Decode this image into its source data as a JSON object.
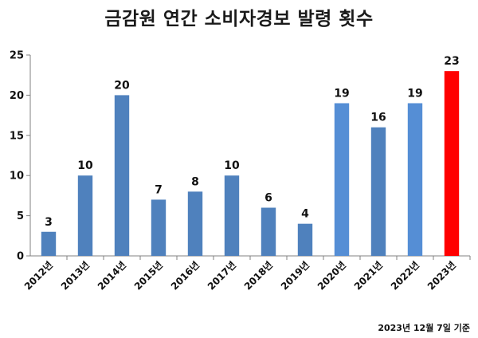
{
  "title": "금감원 연간 소비자경보 발령 횟수",
  "footnote": "2023년 12월 7일 기준",
  "chart_data": {
    "type": "bar",
    "title": "금감원 연간 소비자경보 발령 횟수",
    "categories": [
      "2012년",
      "2013년",
      "2014년",
      "2015년",
      "2016년",
      "2017년",
      "2018년",
      "2019년",
      "2020년",
      "2021년",
      "2022년",
      "2023년"
    ],
    "values": [
      3,
      10,
      20,
      7,
      8,
      10,
      6,
      4,
      19,
      16,
      19,
      23
    ],
    "colors": [
      "#4f81bd",
      "#4f81bd",
      "#4f81bd",
      "#4f81bd",
      "#4f81bd",
      "#4f81bd",
      "#4f81bd",
      "#4f81bd",
      "#558ed5",
      "#4f81bd",
      "#558ed5",
      "#ff0000"
    ],
    "ylim": [
      0,
      25
    ],
    "yticks": [
      0,
      5,
      10,
      15,
      20,
      25
    ],
    "grid": false,
    "legend": "none",
    "data_labels": true
  }
}
